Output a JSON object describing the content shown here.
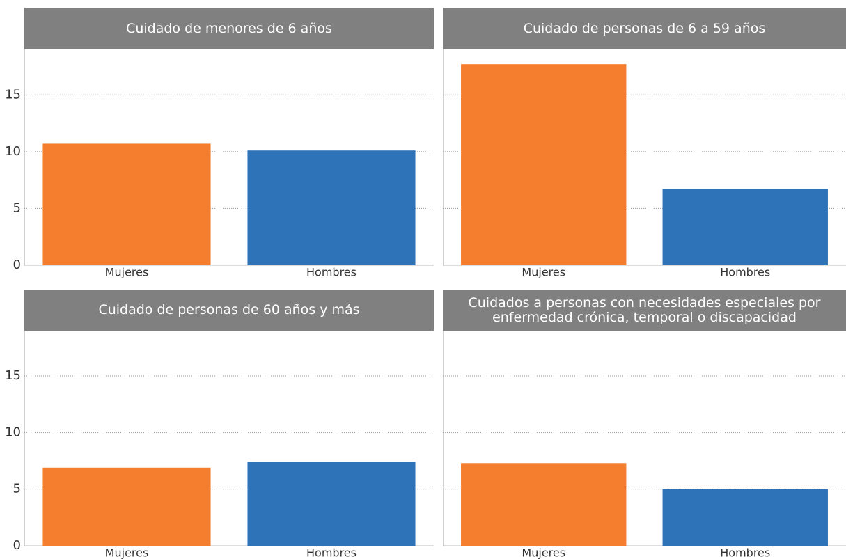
{
  "chart_data": [
    {
      "type": "bar",
      "title": "Cuidado de menores de 6 años",
      "categories": [
        "Mujeres",
        "Hombres"
      ],
      "values": [
        10.7,
        10.1
      ],
      "colors": [
        "#f47e2e",
        "#2e72b8"
      ],
      "ylim": [
        0,
        19
      ],
      "yticks": [
        0,
        5,
        10,
        15
      ],
      "grid": true
    },
    {
      "type": "bar",
      "title": "Cuidado de personas de 6 a 59 años",
      "categories": [
        "Mujeres",
        "Hombres"
      ],
      "values": [
        17.7,
        6.7
      ],
      "colors": [
        "#f47e2e",
        "#2e72b8"
      ],
      "ylim": [
        0,
        19
      ],
      "yticks": [
        0,
        5,
        10,
        15
      ],
      "grid": true
    },
    {
      "type": "bar",
      "title": "Cuidado de personas de 60 años y más",
      "categories": [
        "Mujeres",
        "Hombres"
      ],
      "values": [
        6.9,
        7.4
      ],
      "colors": [
        "#f47e2e",
        "#2e72b8"
      ],
      "ylim": [
        0,
        19
      ],
      "yticks": [
        0,
        5,
        10,
        15
      ],
      "grid": true
    },
    {
      "type": "bar",
      "title": "Cuidados a personas con necesidades especiales por enfermedad crónica, temporal o discapacidad",
      "categories": [
        "Mujeres",
        "Hombres"
      ],
      "values": [
        7.3,
        5.0
      ],
      "colors": [
        "#f47e2e",
        "#2e72b8"
      ],
      "ylim": [
        0,
        19
      ],
      "yticks": [
        0,
        5,
        10,
        15
      ],
      "grid": true
    }
  ]
}
